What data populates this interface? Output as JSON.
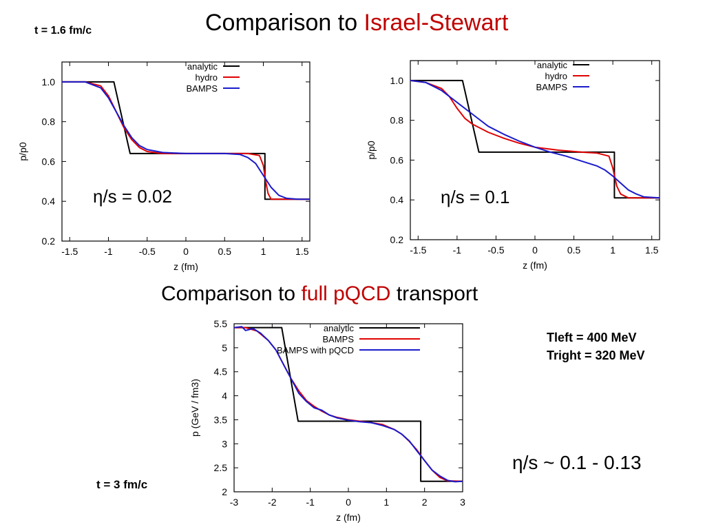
{
  "slide": {
    "title_prefix": "Comparison to ",
    "title_highlight": "Israel-Stewart",
    "time_top": "t = 1.6 fm/c",
    "subtitle_prefix": "Comparison to ",
    "subtitle_highlight": "full pQCD",
    "subtitle_suffix": " transport",
    "t_left": "Tleft = 400 MeV",
    "t_right": "Tright = 320 MeV",
    "eta_bottom": "η/s ~ 0.1 - 0.13",
    "time_bottom": "t = 3 fm/c"
  },
  "colors": {
    "accent_red": "#c00000",
    "analytic": "#000000",
    "hydro": "#e00000",
    "bamps": "#1a1acc"
  },
  "chart_data": [
    {
      "type": "line",
      "annotation": "η/s = 0.02",
      "xlabel": "z (fm)",
      "ylabel": "p/p0",
      "xlim": [
        -1.6,
        1.6
      ],
      "ylim": [
        0.2,
        1.1
      ],
      "xticks": [
        -1.5,
        -1,
        -0.5,
        0,
        0.5,
        1,
        1.5
      ],
      "xtick_labels": [
        "-1.5",
        "-1",
        "-0.5",
        "0",
        "0.5",
        "1",
        "1.5"
      ],
      "yticks": [
        0.2,
        0.4,
        0.6,
        0.8,
        1.0
      ],
      "ytick_labels": [
        "0.2",
        "0.4",
        "0.6",
        "0.8",
        "1.0"
      ],
      "legend_position": "top-right",
      "series": [
        {
          "name": "analytic",
          "color": "#000000",
          "x": [
            -1.6,
            -0.93,
            -0.72,
            1.02,
            1.02,
            1.6
          ],
          "y": [
            1.0,
            1.0,
            0.64,
            0.64,
            0.41,
            0.41
          ]
        },
        {
          "name": "hydro",
          "color": "#e00000",
          "x": [
            -1.6,
            -1.3,
            -1.1,
            -1.0,
            -0.9,
            -0.8,
            -0.7,
            -0.6,
            -0.5,
            -0.3,
            0,
            0.5,
            0.8,
            0.95,
            1.0,
            1.03,
            1.06,
            1.1,
            1.2,
            1.6
          ],
          "y": [
            1.0,
            1.0,
            0.98,
            0.93,
            0.85,
            0.77,
            0.71,
            0.67,
            0.65,
            0.64,
            0.64,
            0.64,
            0.64,
            0.63,
            0.58,
            0.5,
            0.44,
            0.41,
            0.41,
            0.41
          ]
        },
        {
          "name": "BAMPS",
          "color": "#1a1acc",
          "x": [
            -1.6,
            -1.3,
            -1.1,
            -1.0,
            -0.9,
            -0.8,
            -0.7,
            -0.6,
            -0.5,
            -0.3,
            0,
            0.5,
            0.7,
            0.8,
            0.9,
            1.0,
            1.1,
            1.2,
            1.3,
            1.45,
            1.6
          ],
          "y": [
            1.0,
            1.0,
            0.97,
            0.92,
            0.85,
            0.78,
            0.72,
            0.68,
            0.66,
            0.645,
            0.64,
            0.64,
            0.635,
            0.62,
            0.59,
            0.53,
            0.47,
            0.43,
            0.415,
            0.41,
            0.41
          ]
        }
      ]
    },
    {
      "type": "line",
      "annotation": "η/s = 0.1",
      "xlabel": "z (fm)",
      "ylabel": "p/p0",
      "xlim": [
        -1.6,
        1.6
      ],
      "ylim": [
        0.2,
        1.1
      ],
      "xticks": [
        -1.5,
        -1,
        -0.5,
        0,
        0.5,
        1,
        1.5
      ],
      "xtick_labels": [
        "-1.5",
        "-1",
        "-0.5",
        "0",
        "0.5",
        "1",
        "1.5"
      ],
      "yticks": [
        0.2,
        0.4,
        0.6,
        0.8,
        1.0
      ],
      "ytick_labels": [
        "0.2",
        "0.4",
        "0.6",
        "0.8",
        "1.0"
      ],
      "legend_position": "top-right",
      "series": [
        {
          "name": "analytic",
          "color": "#000000",
          "x": [
            -1.6,
            -0.93,
            -0.72,
            1.02,
            1.02,
            1.6
          ],
          "y": [
            1.0,
            1.0,
            0.64,
            0.64,
            0.41,
            0.41
          ]
        },
        {
          "name": "hydro",
          "color": "#e00000",
          "x": [
            -1.6,
            -1.4,
            -1.2,
            -1.1,
            -1.0,
            -0.9,
            -0.8,
            -0.6,
            -0.4,
            -0.2,
            0,
            0.3,
            0.6,
            0.8,
            0.95,
            1.0,
            1.05,
            1.1,
            1.2,
            1.6
          ],
          "y": [
            1.0,
            0.99,
            0.96,
            0.92,
            0.86,
            0.81,
            0.78,
            0.74,
            0.71,
            0.685,
            0.665,
            0.65,
            0.64,
            0.635,
            0.62,
            0.56,
            0.47,
            0.43,
            0.41,
            0.41
          ]
        },
        {
          "name": "BAMPS",
          "color": "#1a1acc",
          "x": [
            -1.6,
            -1.4,
            -1.2,
            -1.0,
            -0.8,
            -0.6,
            -0.4,
            -0.2,
            0,
            0.2,
            0.4,
            0.6,
            0.8,
            0.9,
            1.0,
            1.1,
            1.2,
            1.3,
            1.4,
            1.6
          ],
          "y": [
            1.0,
            0.99,
            0.95,
            0.89,
            0.83,
            0.77,
            0.73,
            0.695,
            0.665,
            0.64,
            0.62,
            0.595,
            0.57,
            0.55,
            0.52,
            0.485,
            0.45,
            0.43,
            0.415,
            0.41
          ]
        }
      ]
    },
    {
      "type": "line",
      "xlabel": "z (fm)",
      "ylabel": "p (GeV / fm3)",
      "xlim": [
        -3,
        3
      ],
      "ylim": [
        2,
        5.5
      ],
      "xticks": [
        -3,
        -2,
        -1,
        0,
        1,
        2,
        3
      ],
      "xtick_labels": [
        "-3",
        "-2",
        "-1",
        "0",
        "1",
        "2",
        "3"
      ],
      "yticks": [
        2,
        2.5,
        3,
        3.5,
        4,
        4.5,
        5,
        5.5
      ],
      "ytick_labels": [
        "2",
        "2.5",
        "3",
        "3.5",
        "4",
        "4.5",
        "5",
        "5.5"
      ],
      "legend_position": "top-right",
      "series": [
        {
          "name": "analytic",
          "color": "#000000",
          "x": [
            -3,
            -1.75,
            -1.32,
            1.9,
            1.9,
            3
          ],
          "y": [
            5.42,
            5.42,
            3.47,
            3.47,
            2.22,
            2.22
          ]
        },
        {
          "name": "BAMPS",
          "color": "#e00000",
          "x": [
            -3,
            -2.7,
            -2.4,
            -2.1,
            -1.9,
            -1.7,
            -1.5,
            -1.3,
            -1.1,
            -0.9,
            -0.7,
            -0.5,
            -0.3,
            0,
            0.3,
            0.6,
            0.9,
            1.2,
            1.4,
            1.6,
            1.8,
            2.0,
            2.2,
            2.4,
            2.6,
            3
          ],
          "y": [
            5.42,
            5.42,
            5.35,
            5.15,
            4.95,
            4.65,
            4.35,
            4.1,
            3.9,
            3.78,
            3.68,
            3.6,
            3.55,
            3.5,
            3.47,
            3.44,
            3.4,
            3.3,
            3.2,
            3.05,
            2.87,
            2.65,
            2.45,
            2.3,
            2.23,
            2.22
          ]
        },
        {
          "name": "BAMPS with pQCD",
          "color": "#1a1acc",
          "x": [
            -3,
            -2.8,
            -2.7,
            -2.5,
            -2.3,
            -2.1,
            -1.9,
            -1.7,
            -1.5,
            -1.3,
            -1.1,
            -0.9,
            -0.7,
            -0.5,
            -0.3,
            0,
            0.3,
            0.6,
            0.9,
            1.2,
            1.4,
            1.6,
            1.8,
            2.0,
            2.2,
            2.4,
            2.6,
            2.8,
            3
          ],
          "y": [
            5.42,
            5.44,
            5.36,
            5.4,
            5.3,
            5.15,
            4.95,
            4.65,
            4.35,
            4.05,
            3.88,
            3.75,
            3.7,
            3.6,
            3.54,
            3.49,
            3.46,
            3.44,
            3.38,
            3.3,
            3.2,
            3.06,
            2.85,
            2.65,
            2.45,
            2.33,
            2.24,
            2.21,
            2.22
          ]
        }
      ]
    }
  ]
}
